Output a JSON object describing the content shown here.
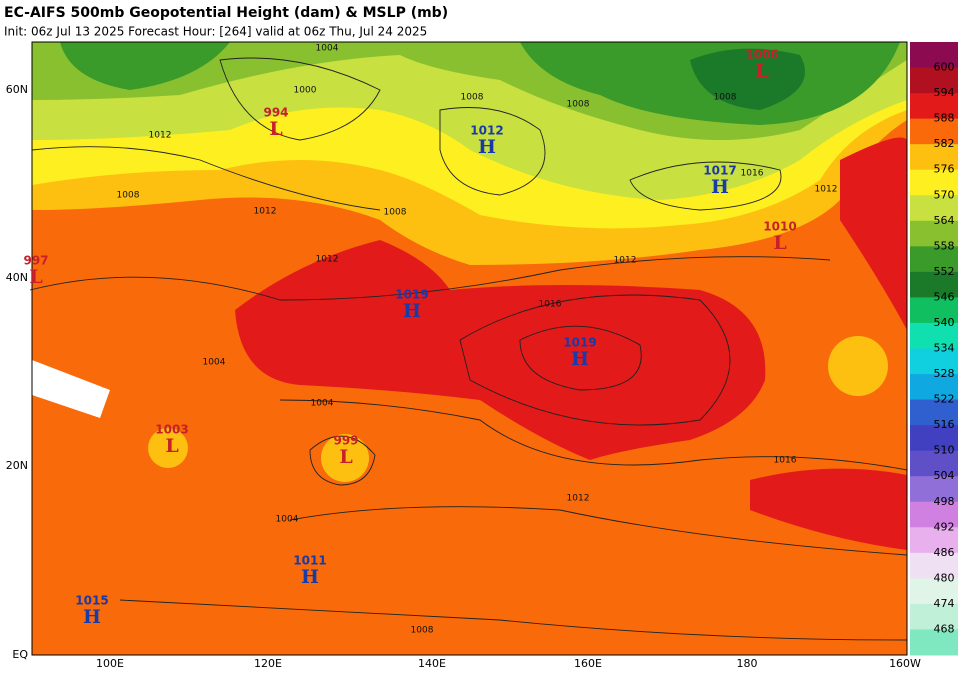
{
  "header": {
    "title": "EC-AIFS 500mb Geopotential Height (dam) & MSLP (mb)",
    "subtitle": "Init: 06z Jul 13 2025   Forecast Hour: [264]   valid at 06z Thu, Jul 24 2025"
  },
  "lat_labels": [
    "60N",
    "40N",
    "20N",
    "EQ"
  ],
  "lon_labels": [
    "100E",
    "120E",
    "140E",
    "160E",
    "180",
    "160W"
  ],
  "colorbar": {
    "ticks": [
      600,
      594,
      588,
      582,
      576,
      570,
      564,
      558,
      552,
      546,
      540,
      534,
      528,
      522,
      516,
      510,
      504,
      498,
      492,
      486,
      480,
      474,
      468
    ],
    "colors": [
      "#8b0a50",
      "#b01020",
      "#e21a1a",
      "#fa6a0a",
      "#fdc010",
      "#fef020",
      "#c8e040",
      "#88c030",
      "#3a9a2a",
      "#1a7a2a",
      "#10c060",
      "#10e0b0",
      "#10d0e0",
      "#10a8e0",
      "#3060d0",
      "#4040c0",
      "#6050c8",
      "#9070d8",
      "#d080e0",
      "#e8b0ec",
      "#f0e0f4",
      "#e0f4e8",
      "#c0f0d8",
      "#80e8c0"
    ]
  },
  "centers": [
    {
      "letter": "L",
      "value": "994"
    },
    {
      "letter": "H",
      "value": "1012"
    },
    {
      "letter": "L",
      "value": "1006"
    },
    {
      "letter": "H",
      "value": "1017"
    },
    {
      "letter": "L",
      "value": "1010"
    },
    {
      "letter": "L",
      "value": "997"
    },
    {
      "letter": "H",
      "value": "1019"
    },
    {
      "letter": "H",
      "value": "1019"
    },
    {
      "letter": "L",
      "value": "1003"
    },
    {
      "letter": "L",
      "value": "999"
    },
    {
      "letter": "H",
      "value": "1011"
    },
    {
      "letter": "H",
      "value": "1015"
    }
  ],
  "isobar_labels": [
    "1004",
    "1000",
    "1012",
    "1008",
    "1012",
    "1008",
    "1008",
    "1008",
    "1016",
    "1012",
    "1008",
    "1012",
    "1016",
    "1012",
    "1004",
    "1004",
    "1016",
    "1012",
    "1004",
    "1008"
  ]
}
